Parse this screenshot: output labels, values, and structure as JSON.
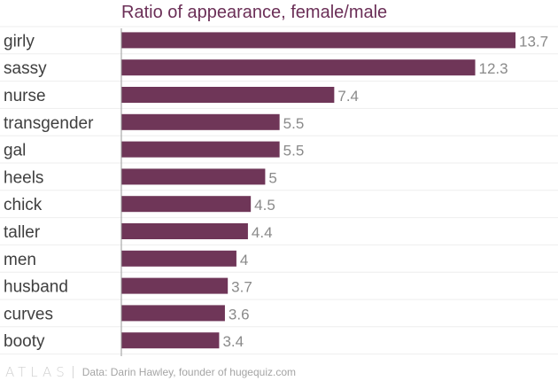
{
  "chart_data": {
    "type": "bar",
    "orientation": "horizontal",
    "title": "Ratio of appearance, female/male",
    "xlabel": "",
    "ylabel": "",
    "xlim": [
      0,
      13.7
    ],
    "grid": true,
    "categories": [
      "girly",
      "sassy",
      "nurse",
      "transgender",
      "gal",
      "heels",
      "chick",
      "taller",
      "men",
      "husband",
      "curves",
      "booty"
    ],
    "values": [
      13.7,
      12.3,
      7.4,
      5.5,
      5.5,
      5,
      4.5,
      4.4,
      4,
      3.7,
      3.6,
      3.4
    ],
    "value_labels": [
      "13.7",
      "12.3",
      "7.4",
      "5.5",
      "5.5",
      "5",
      "4.5",
      "4.4",
      "4",
      "3.7",
      "3.6",
      "3.4"
    ]
  },
  "colors": {
    "bar": "#6f3658",
    "title": "#6b2f57",
    "label": "#3f3f3f",
    "value_label": "#8a8a8a",
    "grid": "#eeeeee",
    "axis": "#9a9a9a"
  },
  "footer": {
    "logo": "ATLAS",
    "source": "Data: Darin Hawley, founder of hugequiz.com"
  }
}
